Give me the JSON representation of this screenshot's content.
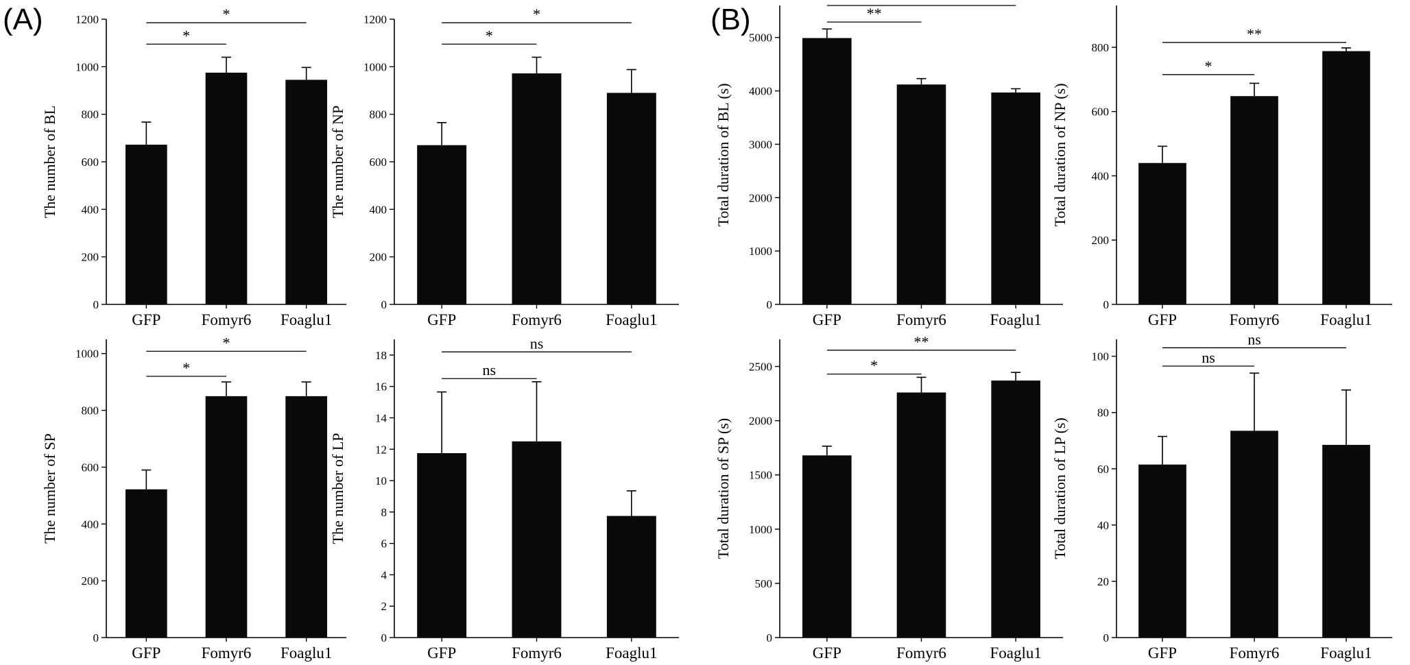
{
  "panel_labels": [
    "(A)",
    "(B)"
  ],
  "chart_data": [
    {
      "type": "bar",
      "panel": "A",
      "ylabel": "The number of BL",
      "categories": [
        "GFP",
        "Fomyr6",
        "Foaglu1"
      ],
      "values": [
        672,
        975,
        945
      ],
      "errors": [
        95,
        65,
        52
      ],
      "ylim": [
        0,
        1200
      ],
      "yticks": [
        0,
        200,
        400,
        600,
        800,
        1000,
        1200
      ],
      "significance": [
        {
          "from": 0,
          "to": 1,
          "label": "*",
          "y": 1095
        },
        {
          "from": 0,
          "to": 2,
          "label": "*",
          "y": 1185
        }
      ]
    },
    {
      "type": "bar",
      "panel": "A",
      "ylabel": "The number of NP",
      "categories": [
        "GFP",
        "Fomyr6",
        "Foaglu1"
      ],
      "values": [
        670,
        972,
        890
      ],
      "errors": [
        95,
        68,
        98
      ],
      "ylim": [
        0,
        1200
      ],
      "yticks": [
        0,
        200,
        400,
        600,
        800,
        1000,
        1200
      ],
      "significance": [
        {
          "from": 0,
          "to": 1,
          "label": "*",
          "y": 1095
        },
        {
          "from": 0,
          "to": 2,
          "label": "*",
          "y": 1185
        }
      ]
    },
    {
      "type": "bar",
      "panel": "B",
      "ylabel": "Total duration of BL (s)",
      "categories": [
        "GFP",
        "Fomyr6",
        "Foaglu1"
      ],
      "values": [
        4990,
        4120,
        3970
      ],
      "errors": [
        170,
        110,
        70
      ],
      "ylim": [
        0,
        5600
      ],
      "yticks": [
        0,
        1000,
        2000,
        3000,
        4000,
        5000
      ],
      "significance": [
        {
          "from": 0,
          "to": 1,
          "label": "**",
          "y": 5290
        },
        {
          "from": 0,
          "to": 2,
          "label": "**",
          "y": 5600
        }
      ]
    },
    {
      "type": "bar",
      "panel": "B",
      "ylabel": "Total duration of NP (s)",
      "categories": [
        "GFP",
        "Fomyr6",
        "Foaglu1"
      ],
      "values": [
        440,
        648,
        788
      ],
      "errors": [
        52,
        40,
        10
      ],
      "ylim": [
        0,
        930
      ],
      "yticks": [
        0,
        200,
        400,
        600,
        800
      ],
      "significance": [
        {
          "from": 0,
          "to": 1,
          "label": "*",
          "y": 715
        },
        {
          "from": 0,
          "to": 2,
          "label": "**",
          "y": 815
        }
      ]
    },
    {
      "type": "bar",
      "panel": "A",
      "ylabel": "The number of SP",
      "categories": [
        "GFP",
        "Fomyr6",
        "Foaglu1"
      ],
      "values": [
        522,
        850,
        850
      ],
      "errors": [
        68,
        50,
        50
      ],
      "ylim": [
        0,
        1050
      ],
      "yticks": [
        0,
        200,
        400,
        600,
        800,
        1000
      ],
      "significance": [
        {
          "from": 0,
          "to": 1,
          "label": "*",
          "y": 920
        },
        {
          "from": 0,
          "to": 2,
          "label": "*",
          "y": 1008
        }
      ]
    },
    {
      "type": "bar",
      "panel": "A",
      "ylabel": "The number of LP",
      "categories": [
        "GFP",
        "Fomyr6",
        "Foaglu1"
      ],
      "values": [
        11.75,
        12.5,
        7.75
      ],
      "errors": [
        3.9,
        3.8,
        1.6
      ],
      "ylim": [
        0,
        19
      ],
      "yticks": [
        0,
        2,
        4,
        6,
        8,
        10,
        12,
        14,
        16,
        18
      ],
      "significance": [
        {
          "from": 0,
          "to": 1,
          "label": "ns",
          "y": 16.5
        },
        {
          "from": 0,
          "to": 2,
          "label": "ns",
          "y": 18.2
        }
      ]
    },
    {
      "type": "bar",
      "panel": "B",
      "ylabel": "Total duration of SP (s)",
      "categories": [
        "GFP",
        "Fomyr6",
        "Foaglu1"
      ],
      "values": [
        1680,
        2260,
        2370
      ],
      "errors": [
        85,
        140,
        75
      ],
      "ylim": [
        0,
        2750
      ],
      "yticks": [
        0,
        500,
        1000,
        1500,
        2000,
        2500
      ],
      "significance": [
        {
          "from": 0,
          "to": 1,
          "label": "*",
          "y": 2430
        },
        {
          "from": 0,
          "to": 2,
          "label": "**",
          "y": 2650
        }
      ]
    },
    {
      "type": "bar",
      "panel": "B",
      "ylabel": "Total duration of LP (s)",
      "categories": [
        "GFP",
        "Fomyr6",
        "Foaglu1"
      ],
      "values": [
        61.5,
        73.5,
        68.5
      ],
      "errors": [
        10,
        20.5,
        19.5
      ],
      "ylim": [
        0,
        106
      ],
      "yticks": [
        0,
        20,
        40,
        60,
        80,
        100
      ],
      "significance": [
        {
          "from": 0,
          "to": 1,
          "label": "ns",
          "y": 96.5
        },
        {
          "from": 0,
          "to": 2,
          "label": "ns",
          "y": 103
        }
      ]
    }
  ]
}
